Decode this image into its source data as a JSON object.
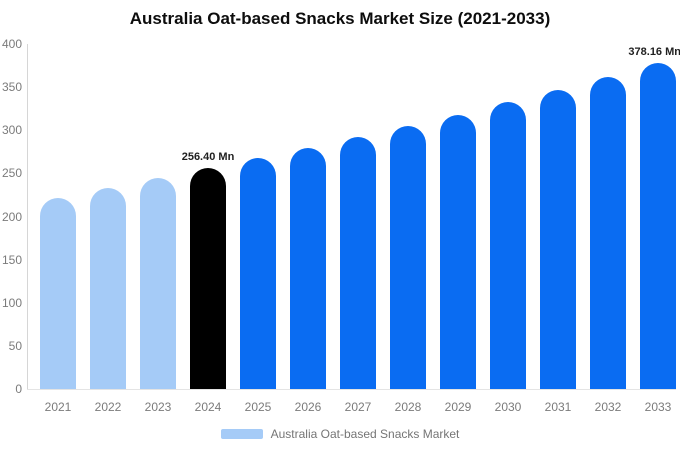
{
  "title": "Australia Oat-based Snacks Market Size (2021-2033)",
  "legend": {
    "label": "Australia Oat-based Snacks Market"
  },
  "colors": {
    "historical": "#a5cbf7",
    "highlight": "#000000",
    "forecast": "#0a6cf2",
    "axis_text": "#7b7b7b",
    "data_label": "#1f1f1f",
    "title_text": "#0d0d0d",
    "axis_line": "#d6d6d6",
    "baseline": "#e4e4e4"
  },
  "chart_data": {
    "type": "bar",
    "title": "Australia Oat-based Snacks Market Size (2021-2033)",
    "categories": [
      "2021",
      "2022",
      "2023",
      "2024",
      "2025",
      "2026",
      "2027",
      "2028",
      "2029",
      "2030",
      "2031",
      "2032",
      "2033"
    ],
    "values": [
      221.49,
      232.56,
      244.19,
      256.4,
      267.71,
      279.52,
      291.85,
      304.72,
      318.16,
      332.2,
      346.85,
      362.15,
      378.16
    ],
    "bar_roles": [
      "historical",
      "historical",
      "historical",
      "highlight",
      "forecast",
      "forecast",
      "forecast",
      "forecast",
      "forecast",
      "forecast",
      "forecast",
      "forecast",
      "forecast"
    ],
    "unit": "Mn",
    "xlabel": "",
    "ylabel": "",
    "ylim": [
      0,
      400
    ],
    "yticks": [
      0,
      50,
      100,
      150,
      200,
      250,
      300,
      350,
      400
    ],
    "grid": false,
    "legend_position": "bottom",
    "legend_entries": [
      "Australia Oat-based Snacks Market"
    ],
    "annotations": [
      {
        "category": "2024",
        "text": "256.40 Mn"
      },
      {
        "category": "2033",
        "text": "378.16 Mn"
      }
    ]
  }
}
